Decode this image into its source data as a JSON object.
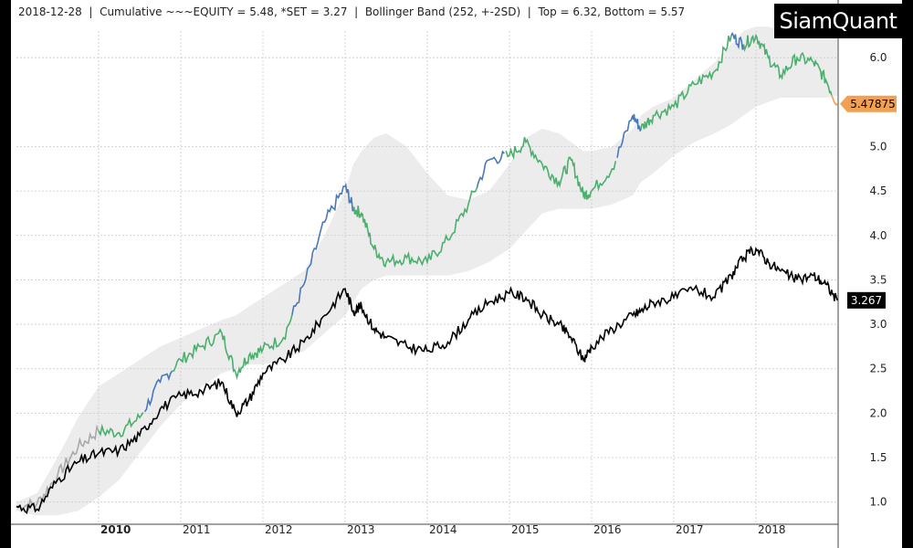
{
  "header": {
    "date": "2018-12-28",
    "sep": "  |  ",
    "cumulative": "Cumulative ~~~EQUITY = 5.48, *SET = 3.27",
    "bollinger": "Bollinger Band (252, +-2SD)",
    "topbottom": "Top = 6.32, Bottom = 5.57"
  },
  "logo": "SiamQuant",
  "last_labels": {
    "equity": "5.47875",
    "set": "3.267"
  },
  "colors": {
    "equity_up": "#4caf6e",
    "equity_strong": "#4a78b8",
    "equity_weak": "#f0a050",
    "equity_pre": "#a8a8a8",
    "set": "#000000",
    "band": "#ececec",
    "grid": "#c9c9c9"
  },
  "chart_data": {
    "type": "line",
    "title": "Cumulative ~~~EQUITY = 5.48, *SET = 3.27",
    "xlabel": "",
    "ylabel": "",
    "x_ticks": [
      "2010",
      "2011",
      "2012",
      "2013",
      "2014",
      "2015",
      "2016",
      "2017",
      "2018"
    ],
    "y_ticks": [
      "1.0",
      "1.5",
      "2.0",
      "2.5",
      "3.0",
      "3.5",
      "4.0",
      "4.5",
      "5.0",
      "6.0"
    ],
    "xlim": [
      2009.0,
      2019.0
    ],
    "ylim": [
      0.75,
      6.3
    ],
    "grid": true,
    "x": [
      2009.0,
      2009.25,
      2009.5,
      2009.75,
      2010.0,
      2010.25,
      2010.5,
      2010.75,
      2011.0,
      2011.25,
      2011.5,
      2011.67,
      2011.83,
      2012.0,
      2012.25,
      2012.5,
      2012.75,
      2013.0,
      2013.1,
      2013.2,
      2013.35,
      2013.5,
      2013.75,
      2014.0,
      2014.25,
      2014.5,
      2014.75,
      2015.0,
      2015.2,
      2015.4,
      2015.6,
      2015.75,
      2015.9,
      2016.0,
      2016.25,
      2016.5,
      2016.6,
      2016.75,
      2017.0,
      2017.25,
      2017.5,
      2017.7,
      2017.85,
      2018.0,
      2018.15,
      2018.3,
      2018.5,
      2018.7,
      2018.85,
      2018.99
    ],
    "series": [
      {
        "name": "EQUITY",
        "values": [
          0.95,
          0.98,
          1.3,
          1.62,
          1.8,
          1.78,
          1.95,
          2.35,
          2.6,
          2.75,
          2.9,
          2.45,
          2.65,
          2.72,
          2.85,
          3.45,
          4.15,
          4.55,
          4.3,
          4.25,
          3.85,
          3.7,
          3.75,
          3.7,
          3.95,
          4.35,
          4.85,
          4.9,
          5.05,
          4.8,
          4.6,
          4.85,
          4.45,
          4.5,
          4.75,
          5.35,
          5.2,
          5.35,
          5.45,
          5.7,
          5.85,
          6.25,
          6.15,
          6.25,
          6.0,
          5.8,
          6.0,
          5.95,
          5.75,
          5.48
        ]
      },
      {
        "name": "SET",
        "values": [
          0.95,
          0.92,
          1.25,
          1.45,
          1.55,
          1.58,
          1.75,
          2.05,
          2.2,
          2.25,
          2.35,
          2.0,
          2.15,
          2.45,
          2.6,
          2.8,
          3.1,
          3.4,
          3.15,
          3.2,
          2.95,
          2.85,
          2.75,
          2.7,
          2.8,
          3.05,
          3.25,
          3.35,
          3.3,
          3.1,
          3.0,
          2.85,
          2.6,
          2.75,
          2.95,
          3.1,
          3.15,
          3.25,
          3.3,
          3.4,
          3.3,
          3.55,
          3.75,
          3.85,
          3.7,
          3.6,
          3.5,
          3.55,
          3.45,
          3.27
        ]
      }
    ],
    "bollinger": {
      "upper": [
        1.0,
        1.1,
        1.5,
        1.95,
        2.3,
        2.45,
        2.6,
        2.75,
        2.85,
        2.95,
        3.05,
        3.1,
        3.2,
        3.3,
        3.45,
        3.6,
        4.0,
        4.5,
        4.8,
        4.95,
        5.1,
        5.15,
        5.0,
        4.7,
        4.45,
        4.4,
        4.5,
        4.8,
        5.1,
        5.2,
        5.15,
        5.05,
        4.95,
        4.95,
        5.0,
        5.2,
        5.35,
        5.45,
        5.55,
        5.75,
        5.95,
        6.15,
        6.3,
        6.35,
        6.35,
        6.3,
        6.3,
        6.3,
        6.3,
        6.32
      ],
      "lower": [
        0.9,
        0.85,
        0.85,
        0.9,
        1.05,
        1.25,
        1.55,
        1.85,
        2.1,
        2.3,
        2.45,
        2.5,
        2.55,
        2.55,
        2.6,
        2.7,
        2.9,
        3.1,
        3.25,
        3.4,
        3.5,
        3.55,
        3.55,
        3.55,
        3.55,
        3.6,
        3.7,
        3.85,
        4.05,
        4.25,
        4.3,
        4.3,
        4.3,
        4.3,
        4.35,
        4.45,
        4.6,
        4.7,
        4.9,
        5.05,
        5.15,
        5.25,
        5.35,
        5.45,
        5.5,
        5.55,
        5.55,
        5.55,
        5.55,
        5.57
      ],
      "label": "Bollinger Band (252, +-2SD)"
    }
  }
}
